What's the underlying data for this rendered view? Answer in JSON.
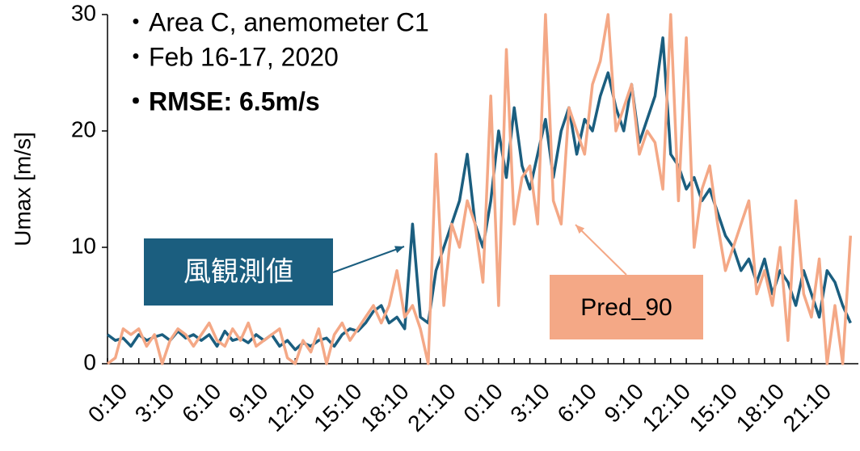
{
  "chart_data": {
    "type": "line",
    "y_label": "Umax [m/s]",
    "annotations": [
      "・Area C, anemometer C1",
      "・Feb 16-17, 2020",
      "・RMSE: 6.5m/s"
    ],
    "categories": [
      "0:10",
      null,
      null,
      null,
      null,
      null,
      "3:10",
      null,
      null,
      null,
      null,
      null,
      "6:10",
      null,
      null,
      null,
      null,
      null,
      "9:10",
      null,
      null,
      null,
      null,
      null,
      "12:10",
      null,
      null,
      null,
      null,
      null,
      "15:10",
      null,
      null,
      null,
      null,
      null,
      "18:10",
      null,
      null,
      null,
      null,
      null,
      "21:10",
      null,
      null,
      null,
      null,
      null,
      "0:10",
      null,
      null,
      null,
      null,
      null,
      "3:10",
      null,
      null,
      null,
      null,
      null,
      "6:10",
      null,
      null,
      null,
      null,
      null,
      "9:10",
      null,
      null,
      null,
      null,
      null,
      "12:10",
      null,
      null,
      null,
      null,
      null,
      "15:10",
      null,
      null,
      null,
      null,
      null,
      "18:10",
      null,
      null,
      null,
      null,
      null,
      "21:10",
      null,
      null,
      null,
      null,
      null
    ],
    "series": [
      {
        "name": "風観測値",
        "color": "#1b5e7f",
        "values": [
          2.5,
          2,
          2.2,
          1.5,
          2.5,
          2,
          2.3,
          2.5,
          2,
          2.8,
          2.2,
          2.5,
          2,
          2.5,
          1.5,
          2.8,
          2,
          2.2,
          1.8,
          2.5,
          2,
          2.5,
          1.5,
          2,
          1.2,
          1.8,
          1.5,
          2,
          2.2,
          1.5,
          2.5,
          3,
          2.8,
          3.5,
          4.5,
          5,
          3.5,
          4,
          3,
          12,
          4,
          3.5,
          8,
          10,
          12,
          14,
          18,
          12,
          10,
          14,
          20,
          16,
          22,
          17,
          15,
          18,
          21,
          16,
          20,
          22,
          18,
          21,
          20,
          23,
          25,
          22,
          20,
          24,
          19,
          21,
          23,
          28,
          18,
          17,
          15,
          16,
          14,
          15,
          13,
          11,
          10,
          8,
          9,
          7,
          9,
          6,
          8,
          7,
          5,
          8,
          6,
          4,
          8,
          7,
          5,
          3.5
        ]
      },
      {
        "name": "Pred_90",
        "color": "#f4a886",
        "values": [
          0,
          0.5,
          3,
          2.5,
          3,
          1.5,
          2.5,
          0,
          2,
          3,
          2.5,
          1.5,
          2.5,
          3.5,
          2,
          1.5,
          3,
          2,
          3.5,
          1.5,
          2,
          2.5,
          3,
          0.5,
          0,
          2,
          1,
          3,
          0,
          2.5,
          3.5,
          2,
          3,
          4,
          5,
          3.5,
          5,
          8,
          4,
          5,
          3,
          0,
          18,
          5,
          12,
          10,
          14,
          12,
          7,
          23,
          5,
          27,
          12,
          16,
          17,
          12,
          30,
          14,
          12,
          22,
          20,
          18,
          24,
          26,
          30,
          20,
          22,
          24,
          18,
          20,
          19,
          15,
          30,
          14,
          28,
          10,
          15,
          17,
          12,
          8,
          10,
          12,
          14,
          6,
          8,
          5,
          10,
          2,
          14,
          6,
          4,
          9,
          0,
          5,
          0,
          11
        ]
      }
    ],
    "ylim": [
      0,
      30
    ],
    "yticks": [
      0,
      10,
      20,
      30
    ],
    "grid": false
  }
}
